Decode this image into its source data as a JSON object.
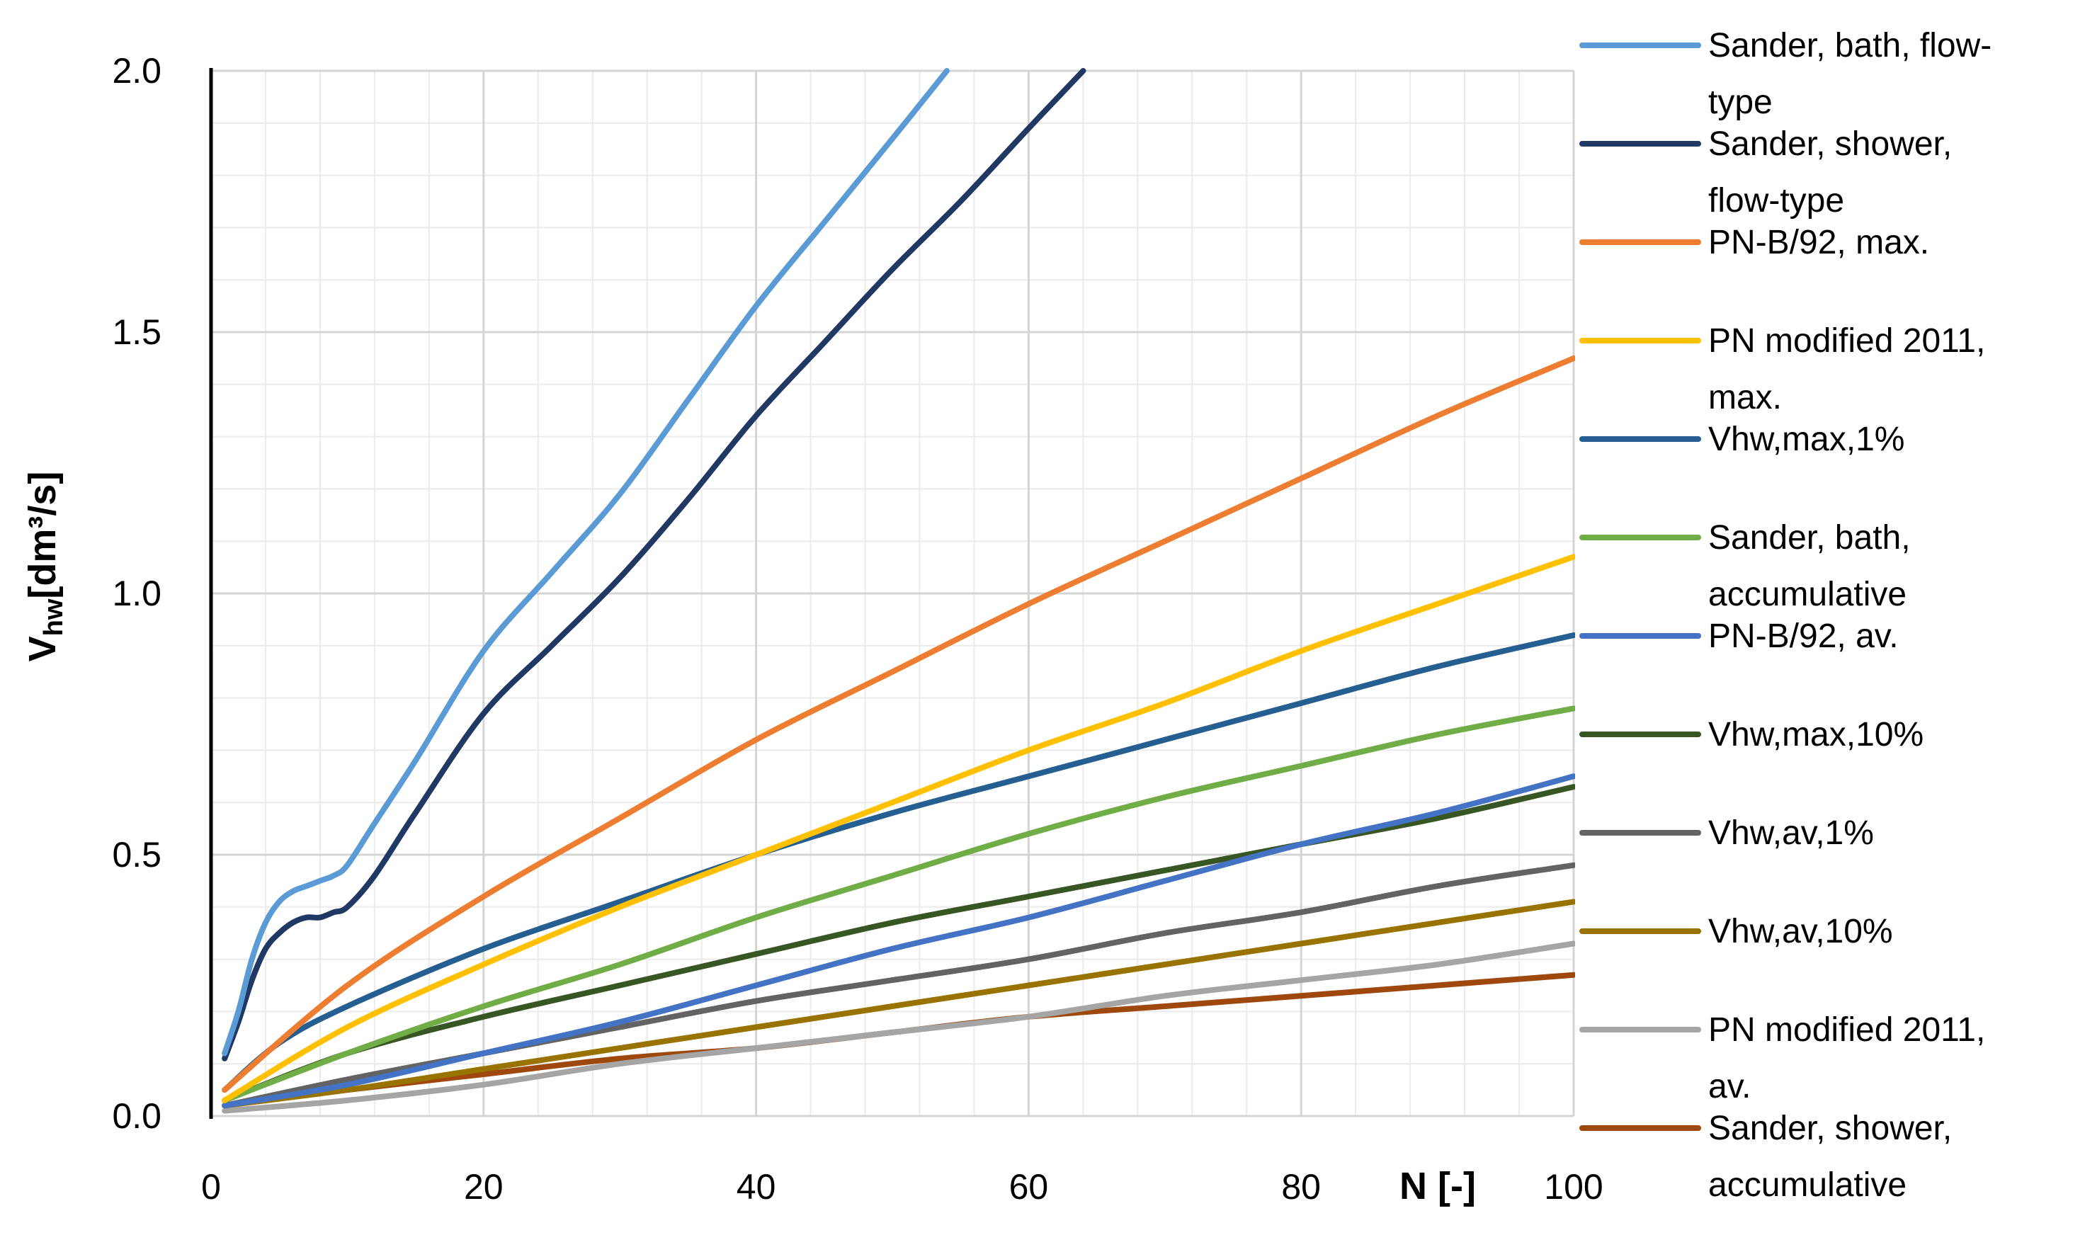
{
  "chart_data": {
    "type": "line",
    "title": "",
    "xlabel": "N [-]",
    "ylabel": "V",
    "ylabel_sub": "hw",
    "ylabel_unit": "[dm³/s]",
    "xlim": [
      0,
      100
    ],
    "ylim": [
      0,
      2.0
    ],
    "x_ticks": [
      0,
      20,
      40,
      60,
      80,
      100
    ],
    "x_tick_labels": [
      "0",
      "20",
      "40",
      "60",
      "80",
      "100"
    ],
    "y_ticks": [
      0,
      0.5,
      1.0,
      1.5,
      2.0
    ],
    "y_tick_labels": [
      "0.0",
      "0.5",
      "1.0",
      "1.5",
      "2.0"
    ],
    "grid": true,
    "legend_position": "right",
    "series": [
      {
        "name": "Sander, bath, flow-type",
        "legend_lines": [
          "Sander, bath, flow-",
          "type"
        ],
        "color": "#5B9BD5",
        "x": [
          1,
          2,
          3,
          4,
          5,
          6,
          7,
          8,
          9,
          10,
          12,
          15,
          20,
          25,
          30,
          35,
          40,
          45,
          50,
          54
        ],
        "y": [
          0.12,
          0.2,
          0.3,
          0.37,
          0.41,
          0.43,
          0.44,
          0.45,
          0.46,
          0.48,
          0.56,
          0.68,
          0.89,
          1.04,
          1.19,
          1.37,
          1.55,
          1.71,
          1.87,
          2.0
        ]
      },
      {
        "name": "Sander, shower, flow-type",
        "legend_lines": [
          "Sander, shower,",
          "flow-type"
        ],
        "color": "#203864",
        "x": [
          1,
          2,
          3,
          4,
          5,
          6,
          7,
          8,
          9,
          10,
          12,
          15,
          20,
          25,
          30,
          35,
          40,
          45,
          50,
          55,
          60,
          64
        ],
        "y": [
          0.11,
          0.18,
          0.26,
          0.32,
          0.35,
          0.37,
          0.38,
          0.38,
          0.39,
          0.4,
          0.46,
          0.58,
          0.77,
          0.9,
          1.03,
          1.18,
          1.34,
          1.48,
          1.62,
          1.75,
          1.89,
          2.0
        ]
      },
      {
        "name": "PN-B/92, max.",
        "legend_lines": [
          "PN-B/92, max."
        ],
        "color": "#ED7D31",
        "x": [
          1,
          10,
          20,
          30,
          40,
          50,
          60,
          70,
          80,
          90,
          100
        ],
        "y": [
          0.05,
          0.25,
          0.42,
          0.57,
          0.72,
          0.85,
          0.98,
          1.1,
          1.22,
          1.34,
          1.45
        ]
      },
      {
        "name": "PN modified 2011, max.",
        "legend_lines": [
          "PN modified 2011,",
          "max."
        ],
        "color": "#FFC000",
        "x": [
          1,
          10,
          20,
          30,
          40,
          50,
          60,
          70,
          80,
          90,
          100
        ],
        "y": [
          0.03,
          0.17,
          0.29,
          0.4,
          0.5,
          0.6,
          0.7,
          0.79,
          0.89,
          0.98,
          1.07
        ]
      },
      {
        "name": "Vhw,max,1%",
        "legend_lines": [
          "Vhw,max,1%"
        ],
        "color": "#255E91",
        "x": [
          1,
          5,
          10,
          20,
          30,
          40,
          50,
          60,
          70,
          80,
          90,
          100
        ],
        "y": [
          0.05,
          0.14,
          0.21,
          0.32,
          0.41,
          0.5,
          0.58,
          0.65,
          0.72,
          0.79,
          0.86,
          0.92
        ]
      },
      {
        "name": "Sander, bath, accumulative",
        "legend_lines": [
          "Sander, bath,",
          "accumulative"
        ],
        "color": "#70AD47",
        "x": [
          1,
          10,
          20,
          30,
          40,
          50,
          60,
          70,
          80,
          90,
          100
        ],
        "y": [
          0.03,
          0.12,
          0.21,
          0.29,
          0.38,
          0.46,
          0.54,
          0.61,
          0.67,
          0.73,
          0.78
        ]
      },
      {
        "name": "PN-B/92, av.",
        "legend_lines": [
          "PN-B/92, av."
        ],
        "color": "#4472C4",
        "x": [
          1,
          10,
          20,
          30,
          40,
          50,
          60,
          70,
          80,
          90,
          100
        ],
        "y": [
          0.02,
          0.06,
          0.12,
          0.18,
          0.25,
          0.32,
          0.38,
          0.45,
          0.52,
          0.58,
          0.65
        ]
      },
      {
        "name": "Vhw,max,10%",
        "legend_lines": [
          "Vhw,max,10%"
        ],
        "color": "#375623",
        "x": [
          1,
          10,
          20,
          30,
          40,
          50,
          60,
          70,
          80,
          90,
          100
        ],
        "y": [
          0.03,
          0.12,
          0.19,
          0.25,
          0.31,
          0.37,
          0.42,
          0.47,
          0.52,
          0.57,
          0.63
        ]
      },
      {
        "name": "Vhw,av,1%",
        "legend_lines": [
          "Vhw,av,1%"
        ],
        "color": "#636363",
        "x": [
          1,
          10,
          20,
          30,
          40,
          50,
          60,
          70,
          80,
          90,
          100
        ],
        "y": [
          0.02,
          0.07,
          0.12,
          0.17,
          0.22,
          0.26,
          0.3,
          0.35,
          0.39,
          0.44,
          0.48
        ]
      },
      {
        "name": "Vhw,av,10%",
        "legend_lines": [
          "Vhw,av,10%"
        ],
        "color": "#997300",
        "x": [
          1,
          10,
          20,
          30,
          40,
          50,
          60,
          70,
          80,
          90,
          100
        ],
        "y": [
          0.02,
          0.05,
          0.09,
          0.13,
          0.17,
          0.21,
          0.25,
          0.29,
          0.33,
          0.37,
          0.41
        ]
      },
      {
        "name": "PN modified 2011, av.",
        "legend_lines": [
          "PN modified 2011,",
          "av."
        ],
        "color": "#A5A5A5",
        "x": [
          1,
          10,
          20,
          30,
          40,
          50,
          60,
          70,
          80,
          90,
          100
        ],
        "y": [
          0.01,
          0.03,
          0.06,
          0.1,
          0.13,
          0.16,
          0.19,
          0.23,
          0.26,
          0.29,
          0.33
        ]
      },
      {
        "name": "Sander, shower, accumulative",
        "legend_lines": [
          "Sander, shower,",
          "accumulative"
        ],
        "color": "#9E480E",
        "x": [
          1,
          10,
          20,
          30,
          40,
          50,
          60,
          70,
          80,
          90,
          100
        ],
        "y": [
          0.02,
          0.05,
          0.08,
          0.11,
          0.13,
          0.16,
          0.19,
          0.21,
          0.23,
          0.25,
          0.27
        ]
      }
    ]
  }
}
